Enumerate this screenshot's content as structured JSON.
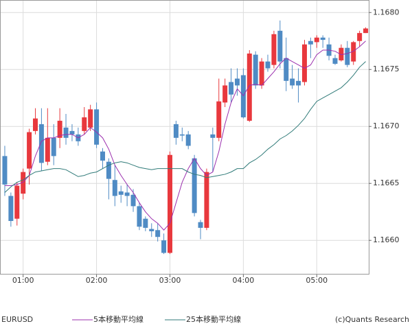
{
  "chart_data": {
    "type": "candlestick",
    "symbol": "EURUSD",
    "copyright": "(c)Quants Research",
    "categories": [
      null,
      null,
      null,
      "01:00",
      null,
      null,
      null,
      null,
      null,
      null,
      null,
      null,
      null,
      null,
      null,
      "02:00",
      null,
      null,
      null,
      null,
      null,
      null,
      null,
      null,
      null,
      null,
      null,
      "03:00",
      null,
      null,
      null,
      null,
      null,
      null,
      null,
      null,
      null,
      null,
      null,
      "04:00",
      null,
      null,
      null,
      null,
      null,
      null,
      null,
      null,
      null,
      null,
      null,
      "05:00",
      null,
      null,
      null,
      null,
      null,
      null,
      null,
      null
    ],
    "open": [
      1.16674,
      1.16639,
      1.16619,
      1.16641,
      1.16663,
      1.16696,
      1.16702,
      1.16669,
      1.1669,
      1.1669,
      1.16699,
      1.16696,
      1.16693,
      1.16696,
      1.16699,
      1.16715,
      1.16678,
      1.16669,
      1.16653,
      1.16643,
      1.16642,
      1.1664,
      1.1663,
      1.16619,
      1.1661,
      1.16609,
      1.166,
      1.16589,
      1.16702,
      1.16693,
      1.16693,
      1.16672,
      1.16616,
      1.16611,
      1.16693,
      1.1669,
      1.16721,
      1.16739,
      1.16742,
      1.16745,
      1.16705,
      1.16763,
      1.16736,
      1.16757,
      1.16754,
      1.16784,
      1.1676,
      1.16742,
      1.1674,
      1.16739,
      1.16775,
      1.16774,
      1.16778,
      1.16772,
      1.1676,
      1.16758,
      1.16769,
      1.16757,
      1.16775,
      1.16782
    ],
    "high": [
      1.16683,
      1.16642,
      1.16651,
      1.16663,
      1.16698,
      1.16716,
      1.16716,
      1.16716,
      1.16702,
      1.16716,
      1.16711,
      1.16702,
      1.16699,
      1.16717,
      1.16719,
      1.16721,
      1.16681,
      1.16672,
      1.16666,
      1.16648,
      1.16649,
      1.16645,
      1.16633,
      1.16621,
      1.16615,
      1.16615,
      1.16606,
      1.16678,
      1.16705,
      1.16699,
      1.16696,
      1.16675,
      1.16618,
      1.16663,
      1.16699,
      1.16742,
      1.16742,
      1.16751,
      1.16751,
      1.16751,
      1.16767,
      1.16766,
      1.1676,
      1.16763,
      1.16784,
      1.16793,
      1.16778,
      1.16754,
      1.16751,
      1.16776,
      1.16778,
      1.1678,
      1.1678,
      1.16778,
      1.16763,
      1.16772,
      1.16775,
      1.16775,
      1.16784,
      1.16787
    ],
    "low": [
      1.16639,
      1.16612,
      1.16613,
      1.16636,
      1.16649,
      1.16693,
      1.16661,
      1.16666,
      1.16666,
      1.16681,
      1.16684,
      1.16687,
      1.16683,
      1.16693,
      1.16696,
      1.16681,
      1.16663,
      1.16636,
      1.1663,
      1.16633,
      1.1663,
      1.16625,
      1.16609,
      1.16608,
      1.16603,
      1.16599,
      1.16588,
      1.16588,
      1.16684,
      1.16687,
      1.1668,
      1.16621,
      1.16601,
      1.16609,
      1.1666,
      1.16687,
      1.16717,
      1.16721,
      1.16727,
      1.16707,
      1.16704,
      1.16733,
      1.16733,
      1.16748,
      1.16751,
      1.16751,
      1.16731,
      1.16733,
      1.16721,
      1.16736,
      1.1676,
      1.16769,
      1.16769,
      1.16758,
      1.16754,
      1.16757,
      1.16752,
      1.16754,
      1.1677,
      1.16782
    ],
    "close": [
      1.16649,
      1.16617,
      1.16648,
      1.1666,
      1.16695,
      1.16707,
      1.16668,
      1.1669,
      1.16674,
      1.16705,
      1.1669,
      1.16693,
      1.16687,
      1.16708,
      1.16715,
      1.16684,
      1.1667,
      1.16654,
      1.16639,
      1.1664,
      1.16639,
      1.1663,
      1.16612,
      1.16611,
      1.16608,
      1.16603,
      1.16589,
      1.16675,
      1.1669,
      1.16692,
      1.16683,
      1.16624,
      1.16611,
      1.1666,
      1.1669,
      1.16722,
      1.16736,
      1.16728,
      1.16736,
      1.16708,
      1.16764,
      1.16736,
      1.16757,
      1.16751,
      1.16781,
      1.16757,
      1.1674,
      1.16736,
      1.16736,
      1.16772,
      1.16772,
      1.16778,
      1.16776,
      1.16762,
      1.16755,
      1.16769,
      1.16754,
      1.16774,
      1.16782,
      1.16786
    ],
    "up_color": "#e8383d",
    "down_color": "#4f8bc4",
    "series": [
      {
        "name": "5本移動平均線",
        "color": "#9b2fae",
        "values": [
          1.16648,
          1.16648,
          1.16649,
          1.16651,
          1.16657,
          1.16674,
          1.16687,
          1.1669,
          1.1669,
          1.16692,
          1.16693,
          1.16693,
          1.1669,
          1.16693,
          1.16699,
          1.16695,
          1.1669,
          1.1668,
          1.16666,
          1.16657,
          1.16649,
          1.16642,
          1.16633,
          1.16625,
          1.16619,
          1.16615,
          1.16609,
          1.16615,
          1.16633,
          1.16651,
          1.16663,
          1.16672,
          1.16663,
          1.16657,
          1.1666,
          1.16678,
          1.16702,
          1.16721,
          1.16733,
          1.16727,
          1.16736,
          1.16737,
          1.16736,
          1.16742,
          1.16748,
          1.16755,
          1.1676,
          1.16757,
          1.16754,
          1.16751,
          1.16754,
          1.16763,
          1.16767,
          1.16767,
          1.16766,
          1.16763,
          1.16764,
          1.16766,
          1.1677,
          1.16775
        ]
      },
      {
        "name": "25本移動平均線",
        "color": "#2f7a78",
        "values": [
          1.16642,
          1.16647,
          1.16651,
          1.16653,
          1.16657,
          1.1666,
          1.16661,
          1.16662,
          1.16663,
          1.16663,
          1.16662,
          1.16659,
          1.16656,
          1.16657,
          1.16659,
          1.1666,
          1.16663,
          1.16666,
          1.16668,
          1.16669,
          1.16668,
          1.16666,
          1.16664,
          1.16663,
          1.16662,
          1.16663,
          1.16663,
          1.16663,
          1.16663,
          1.16663,
          1.1666,
          1.16658,
          1.16657,
          1.16655,
          1.16656,
          1.16657,
          1.16658,
          1.1666,
          1.16663,
          1.16663,
          1.16668,
          1.16671,
          1.16675,
          1.1668,
          1.16684,
          1.16689,
          1.16692,
          1.16696,
          1.16701,
          1.16707,
          1.16715,
          1.16722,
          1.16725,
          1.16728,
          1.16731,
          1.16734,
          1.16739,
          1.16745,
          1.16752,
          1.16757
        ]
      }
    ],
    "ylim": [
      1.1657,
      1.16811
    ],
    "yticks": [
      {
        "value": 1.166,
        "label": "1.1660"
      },
      {
        "value": 1.1665,
        "label": "1.1665"
      },
      {
        "value": 1.167,
        "label": "1.1670"
      },
      {
        "value": 1.1675,
        "label": "1.1675"
      },
      {
        "value": 1.168,
        "label": "1.1680"
      }
    ],
    "grid": true
  }
}
